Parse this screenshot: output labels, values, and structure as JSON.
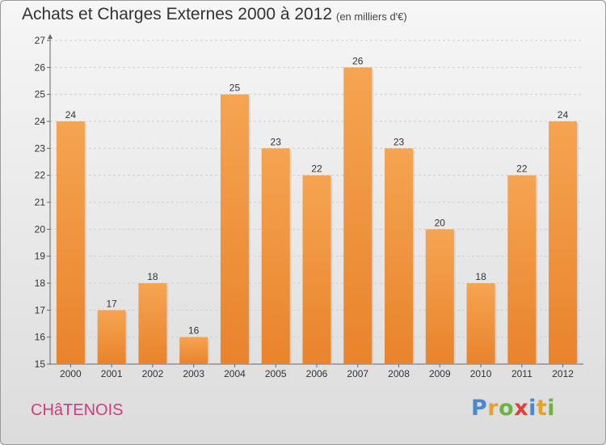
{
  "chart_data": {
    "type": "bar",
    "title": "Achats et Charges Externes 2000 à 2012",
    "subtitle": "(en milliers d'€)",
    "categories": [
      "2000",
      "2001",
      "2002",
      "2003",
      "2004",
      "2005",
      "2006",
      "2007",
      "2008",
      "2009",
      "2010",
      "2011",
      "2012"
    ],
    "values": [
      24,
      17,
      18,
      16,
      25,
      23,
      22,
      26,
      23,
      20,
      18,
      22,
      24
    ],
    "xlabel": "",
    "ylabel": "",
    "ylim": [
      15,
      27
    ],
    "yticks": [
      15,
      16,
      17,
      18,
      19,
      20,
      21,
      22,
      23,
      24,
      25,
      26,
      27
    ],
    "grid": true,
    "bar_color": "#e9832c",
    "bar_color_light": "#f5a451"
  },
  "footer": {
    "place": "CHâTENOIS",
    "logo_letters": [
      "P",
      "r",
      "o",
      "x",
      "i",
      "t",
      "i"
    ],
    "logo_colors": [
      "#4a89cf",
      "#e8a227",
      "#6bb43f",
      "#e0403c",
      "#4a89cf",
      "#e8a227",
      "#6bb43f"
    ]
  }
}
